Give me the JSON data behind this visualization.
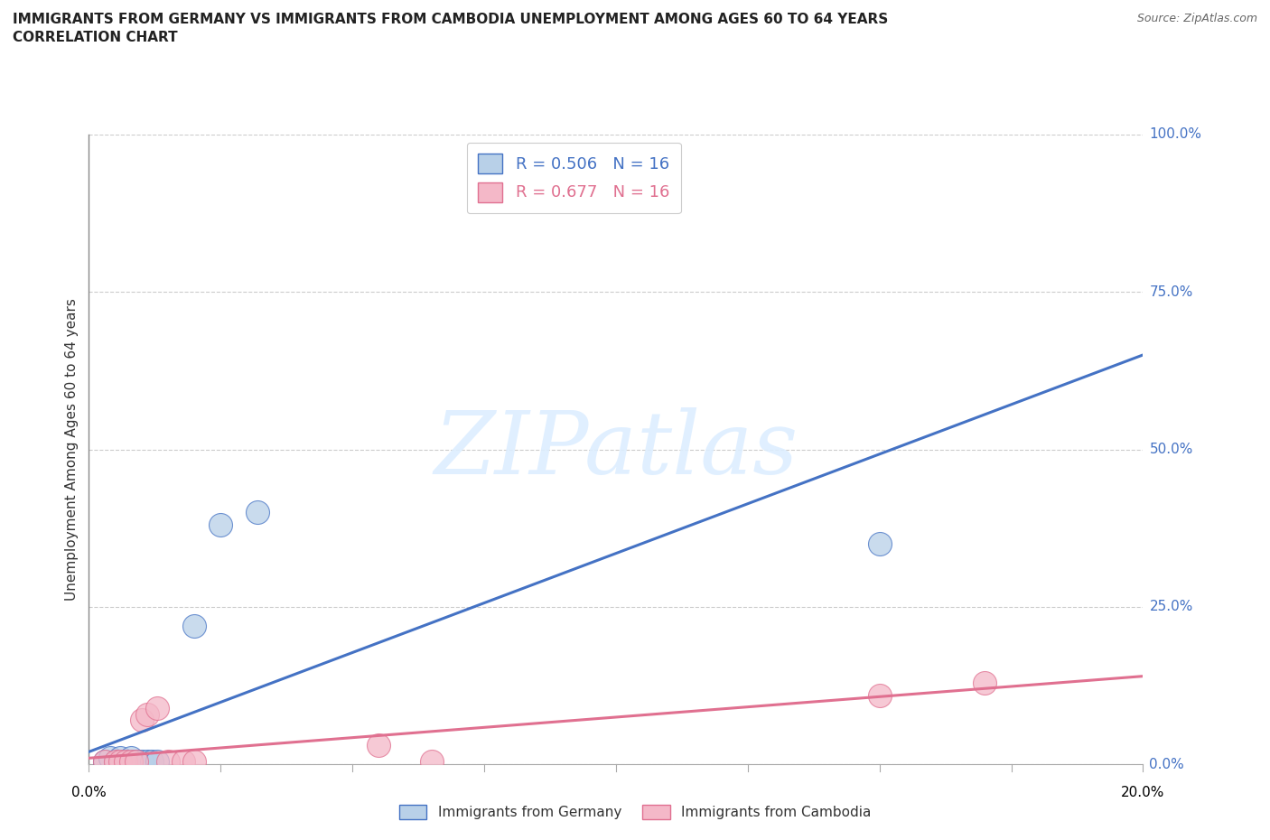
{
  "title_line1": "IMMIGRANTS FROM GERMANY VS IMMIGRANTS FROM CAMBODIA UNEMPLOYMENT AMONG AGES 60 TO 64 YEARS",
  "title_line2": "CORRELATION CHART",
  "source": "Source: ZipAtlas.com",
  "xlabel_bottom_left": "0.0%",
  "xlabel_bottom_right": "20.0%",
  "ylabel": "Unemployment Among Ages 60 to 64 years",
  "ytick_labels": [
    "0.0%",
    "25.0%",
    "50.0%",
    "75.0%",
    "100.0%"
  ],
  "ytick_values": [
    0.0,
    0.25,
    0.5,
    0.75,
    1.0
  ],
  "xlim": [
    0.0,
    0.2
  ],
  "ylim": [
    0.0,
    1.0
  ],
  "germany_R": "0.506",
  "germany_N": "16",
  "cambodia_R": "0.677",
  "cambodia_N": "16",
  "germany_color": "#b8d0e8",
  "germany_line_color": "#4472c4",
  "cambodia_color": "#f4b8c8",
  "cambodia_line_color": "#e07090",
  "watermark_text": "ZIPatlas",
  "watermark_color": "#ddeeff",
  "germany_x": [
    0.003,
    0.004,
    0.005,
    0.006,
    0.007,
    0.008,
    0.008,
    0.009,
    0.01,
    0.011,
    0.012,
    0.013,
    0.02,
    0.025,
    0.032,
    0.15
  ],
  "germany_y": [
    0.005,
    0.01,
    0.005,
    0.01,
    0.005,
    0.005,
    0.01,
    0.005,
    0.005,
    0.005,
    0.005,
    0.005,
    0.22,
    0.38,
    0.4,
    0.35
  ],
  "cambodia_x": [
    0.003,
    0.005,
    0.006,
    0.007,
    0.008,
    0.009,
    0.01,
    0.011,
    0.013,
    0.015,
    0.018,
    0.02,
    0.055,
    0.065,
    0.15,
    0.17
  ],
  "cambodia_y": [
    0.005,
    0.005,
    0.005,
    0.005,
    0.005,
    0.005,
    0.07,
    0.08,
    0.09,
    0.005,
    0.005,
    0.005,
    0.03,
    0.005,
    0.11,
    0.13
  ],
  "germany_line_x": [
    0.0,
    0.2
  ],
  "germany_line_y": [
    0.02,
    0.65
  ],
  "cambodia_line_x": [
    0.0,
    0.2
  ],
  "cambodia_line_y": [
    0.01,
    0.14
  ]
}
